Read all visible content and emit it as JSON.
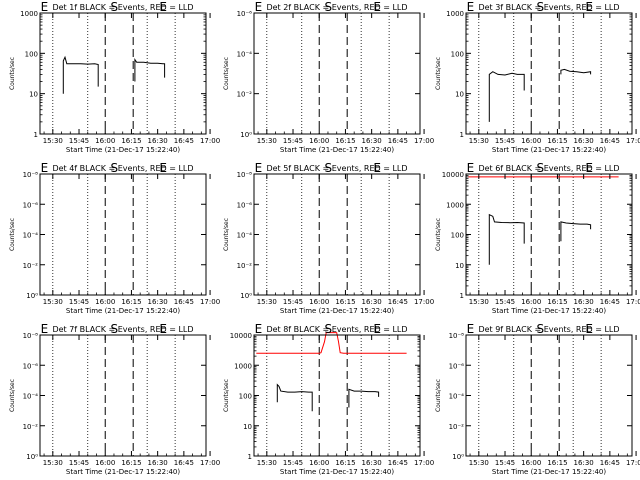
{
  "xlabel": "Start Time (21-Dec-17 15:22:40)",
  "ylabel": "Counts/sec",
  "x_tick_labels": [
    "15:30",
    "15:45",
    "16:00",
    "16:15",
    "16:30",
    "16:45",
    "17:00"
  ],
  "colors": {
    "events": "#000000",
    "lld": "#ff0000",
    "background": "#ffffff"
  },
  "chart_data": [
    {
      "type": "line",
      "title": "Det 1f BLACK = Events, RED = LLD",
      "y_scale": "log",
      "ylim": [
        1,
        1000
      ],
      "y_ticks": [
        "1",
        "10",
        "100",
        "1000"
      ],
      "x_tick_labels": [
        "15:30",
        "15:45",
        "16:00",
        "16:15",
        "16:30",
        "16:45",
        "17:00"
      ],
      "dotted_lines": [
        "15:30",
        "15:50",
        "16:24",
        "16:40"
      ],
      "dashed_lines": [
        "16:00",
        "16:16"
      ],
      "markers": [
        {
          "label": "E",
          "x": "15:23",
          "y": 1000
        },
        {
          "label": "S",
          "x": "16:03",
          "y": 1000
        },
        {
          "label": "E",
          "x": "16:31",
          "y": 1000
        }
      ],
      "series": [
        {
          "color": "#000000",
          "points": [
            [
              "15:36",
              10
            ],
            [
              "15:36",
              65
            ],
            [
              "15:37",
              80
            ],
            [
              "15:38",
              55
            ],
            [
              "15:42",
              55
            ],
            [
              "15:46",
              55
            ],
            [
              "15:50",
              54
            ],
            [
              "15:54",
              55
            ],
            [
              "15:56",
              53
            ],
            [
              "15:56",
              15
            ]
          ]
        },
        {
          "color": "#000000",
          "points": [
            [
              "16:17",
              20
            ],
            [
              "16:17",
              70
            ],
            [
              "16:18",
              60
            ],
            [
              "16:22",
              60
            ],
            [
              "16:26",
              57
            ],
            [
              "16:30",
              57
            ],
            [
              "16:33",
              55
            ],
            [
              "16:34",
              55
            ],
            [
              "16:34",
              25
            ]
          ]
        }
      ]
    },
    {
      "type": "line",
      "title": "Det 2f BLACK = Events, RED = LLD",
      "y_scale": "log",
      "ylim": [
        1,
        1e-06
      ],
      "y_ticks": [
        "10⁰",
        "10⁻²",
        "10⁻⁴",
        "10⁻⁶"
      ],
      "x_tick_labels": [
        "15:30",
        "15:45",
        "16:00",
        "16:15",
        "16:30",
        "16:45",
        "17:00"
      ],
      "dotted_lines": [
        "15:30",
        "15:50",
        "16:24",
        "16:40"
      ],
      "dashed_lines": [
        "16:00",
        "16:16"
      ],
      "markers": [
        {
          "label": "E",
          "x": "15:23",
          "y": 1
        },
        {
          "label": "S",
          "x": "16:03",
          "y": 1
        },
        {
          "label": "E",
          "x": "16:31",
          "y": 1
        }
      ],
      "series": []
    },
    {
      "type": "line",
      "title": "Det 3f BLACK = Events, RED = LLD",
      "y_scale": "log",
      "ylim": [
        1,
        1000
      ],
      "y_ticks": [
        "1",
        "10",
        "100",
        "1000"
      ],
      "x_tick_labels": [
        "15:30",
        "15:45",
        "16:00",
        "16:15",
        "16:30",
        "16:45",
        "17:00"
      ],
      "dotted_lines": [
        "15:30",
        "15:50",
        "16:24",
        "16:40"
      ],
      "dashed_lines": [
        "16:00",
        "16:16"
      ],
      "markers": [
        {
          "label": "E",
          "x": "15:23",
          "y": 1000
        },
        {
          "label": "S",
          "x": "16:03",
          "y": 1000
        },
        {
          "label": "E",
          "x": "16:31",
          "y": 1000
        }
      ],
      "series": [
        {
          "color": "#000000",
          "points": [
            [
              "15:36",
              2
            ],
            [
              "15:36",
              30
            ],
            [
              "15:38",
              35
            ],
            [
              "15:41",
              30
            ],
            [
              "15:45",
              29
            ],
            [
              "15:49",
              32
            ],
            [
              "15:52",
              30
            ],
            [
              "15:56",
              30
            ],
            [
              "15:56",
              12
            ]
          ]
        },
        {
          "color": "#000000",
          "points": [
            [
              "16:17",
              30
            ],
            [
              "16:17",
              38
            ],
            [
              "16:19",
              40
            ],
            [
              "16:22",
              36
            ],
            [
              "16:26",
              35
            ],
            [
              "16:30",
              33
            ],
            [
              "16:34",
              35
            ],
            [
              "16:34",
              30
            ]
          ]
        }
      ]
    },
    {
      "type": "line",
      "title": "Det 4f BLACK = Events, RED = LLD",
      "y_scale": "log",
      "ylim": [
        1,
        1e-08
      ],
      "y_ticks": [
        "10⁰",
        "10⁻²",
        "10⁻⁴",
        "10⁻⁶",
        "10⁻⁸"
      ],
      "x_tick_labels": [
        "15:30",
        "15:45",
        "16:00",
        "16:15",
        "16:30",
        "16:45",
        "17:00"
      ],
      "dotted_lines": [
        "15:30",
        "15:50",
        "16:24",
        "16:40"
      ],
      "dashed_lines": [
        "16:00",
        "16:16"
      ],
      "markers": [
        {
          "label": "E",
          "x": "15:23",
          "y": 1
        },
        {
          "label": "S",
          "x": "16:03",
          "y": 1
        },
        {
          "label": "E",
          "x": "16:31",
          "y": 1
        }
      ],
      "series": []
    },
    {
      "type": "line",
      "title": "Det 5f BLACK = Events, RED = LLD",
      "y_scale": "log",
      "ylim": [
        1,
        1e-08
      ],
      "y_ticks": [
        "10⁰",
        "10⁻²",
        "10⁻⁴",
        "10⁻⁶",
        "10⁻⁸"
      ],
      "x_tick_labels": [
        "15:30",
        "15:45",
        "16:00",
        "16:15",
        "16:30",
        "16:45",
        "17:00"
      ],
      "dotted_lines": [
        "15:30",
        "15:50",
        "16:24",
        "16:40"
      ],
      "dashed_lines": [
        "16:00",
        "16:16"
      ],
      "markers": [
        {
          "label": "E",
          "x": "15:23",
          "y": 1
        },
        {
          "label": "S",
          "x": "16:03",
          "y": 1
        },
        {
          "label": "E",
          "x": "16:31",
          "y": 1
        }
      ],
      "series": []
    },
    {
      "type": "line",
      "title": "Det 6f BLACK = Events, RED = LLD",
      "y_scale": "log",
      "ylim": [
        1,
        10000
      ],
      "y_ticks": [
        "1",
        "10",
        "100",
        "1000",
        "10000"
      ],
      "x_tick_labels": [
        "15:30",
        "15:45",
        "16:00",
        "16:15",
        "16:30",
        "16:45",
        "17:00"
      ],
      "dotted_lines": [
        "15:30",
        "15:50",
        "16:24",
        "16:40"
      ],
      "dashed_lines": [
        "16:00",
        "16:16"
      ],
      "markers": [
        {
          "label": "E",
          "x": "15:23",
          "y": 10000
        },
        {
          "label": "S",
          "x": "16:03",
          "y": 10000
        },
        {
          "label": "E",
          "x": "16:31",
          "y": 10000
        }
      ],
      "series": [
        {
          "color": "#ff0000",
          "points": [
            [
              "15:24",
              8000
            ],
            [
              "15:40",
              8000
            ],
            [
              "15:56",
              8000
            ],
            [
              "16:00",
              8000
            ],
            [
              "16:05",
              8000
            ],
            [
              "16:10",
              8000
            ],
            [
              "16:16",
              8000
            ],
            [
              "16:24",
              8000
            ],
            [
              "16:34",
              8000
            ],
            [
              "16:40",
              8000
            ],
            [
              "16:50",
              8000
            ]
          ]
        },
        {
          "color": "#000000",
          "points": [
            [
              "15:36",
              10
            ],
            [
              "15:36",
              450
            ],
            [
              "15:38",
              400
            ],
            [
              "15:39",
              260
            ],
            [
              "15:43",
              250
            ],
            [
              "15:48",
              245
            ],
            [
              "15:52",
              250
            ],
            [
              "15:56",
              240
            ],
            [
              "15:56",
              50
            ]
          ]
        },
        {
          "color": "#000000",
          "points": [
            [
              "16:17",
              60
            ],
            [
              "16:17",
              260
            ],
            [
              "16:20",
              240
            ],
            [
              "16:24",
              230
            ],
            [
              "16:28",
              220
            ],
            [
              "16:32",
              220
            ],
            [
              "16:34",
              210
            ],
            [
              "16:34",
              150
            ]
          ]
        }
      ]
    },
    {
      "type": "line",
      "title": "Det 7f BLACK = Events, RED = LLD",
      "y_scale": "log",
      "ylim": [
        1,
        1e-08
      ],
      "y_ticks": [
        "10⁰",
        "10⁻²",
        "10⁻⁴",
        "10⁻⁶",
        "10⁻⁸"
      ],
      "x_tick_labels": [
        "15:30",
        "15:45",
        "16:00",
        "16:15",
        "16:30",
        "16:45",
        "17:00"
      ],
      "dotted_lines": [
        "15:30",
        "15:50",
        "16:24",
        "16:40"
      ],
      "dashed_lines": [
        "16:00",
        "16:16"
      ],
      "markers": [
        {
          "label": "E",
          "x": "15:23",
          "y": 1
        },
        {
          "label": "S",
          "x": "16:03",
          "y": 1
        },
        {
          "label": "E",
          "x": "16:31",
          "y": 1
        }
      ],
      "series": []
    },
    {
      "type": "line",
      "title": "Det 8f BLACK = Events, RED = LLD",
      "y_scale": "log",
      "ylim": [
        1,
        10000
      ],
      "y_ticks": [
        "1",
        "10",
        "100",
        "1000",
        "10000"
      ],
      "x_tick_labels": [
        "15:30",
        "15:45",
        "16:00",
        "16:15",
        "16:30",
        "16:45",
        "17:00"
      ],
      "dotted_lines": [
        "15:30",
        "15:50",
        "16:24",
        "16:40"
      ],
      "dashed_lines": [
        "16:00",
        "16:16"
      ],
      "markers": [
        {
          "label": "E",
          "x": "15:23",
          "y": 10000
        },
        {
          "label": "S",
          "x": "16:03",
          "y": 10000
        },
        {
          "label": "E",
          "x": "16:31",
          "y": 10000
        }
      ],
      "series": [
        {
          "color": "#ff0000",
          "points": [
            [
              "15:24",
              2500
            ],
            [
              "15:40",
              2500
            ],
            [
              "15:56",
              2500
            ],
            [
              "16:00",
              2500
            ],
            [
              "16:01",
              2600
            ],
            [
              "16:03",
              6000
            ],
            [
              "16:04",
              12000
            ],
            [
              "16:08",
              12000
            ],
            [
              "16:10",
              12000
            ],
            [
              "16:11",
              6000
            ],
            [
              "16:12",
              2600
            ],
            [
              "16:14",
              2500
            ],
            [
              "16:30",
              2500
            ],
            [
              "16:50",
              2500
            ]
          ]
        },
        {
          "color": "#000000",
          "points": [
            [
              "15:36",
              60
            ],
            [
              "15:36",
              230
            ],
            [
              "15:37",
              200
            ],
            [
              "15:38",
              140
            ],
            [
              "15:42",
              130
            ],
            [
              "15:46",
              130
            ],
            [
              "15:50",
              135
            ],
            [
              "15:54",
              130
            ],
            [
              "15:56",
              130
            ],
            [
              "15:56",
              30
            ]
          ]
        },
        {
          "color": "#000000",
          "points": [
            [
              "16:17",
              40
            ],
            [
              "16:17",
              160
            ],
            [
              "16:20",
              140
            ],
            [
              "16:24",
              140
            ],
            [
              "16:28",
              135
            ],
            [
              "16:32",
              135
            ],
            [
              "16:34",
              130
            ],
            [
              "16:34",
              90
            ]
          ]
        }
      ]
    },
    {
      "type": "line",
      "title": "Det 9f BLACK = Events, RED = LLD",
      "y_scale": "log",
      "ylim": [
        1,
        1e-08
      ],
      "y_ticks": [
        "10⁰",
        "10⁻²",
        "10⁻⁴",
        "10⁻⁶",
        "10⁻⁸"
      ],
      "x_tick_labels": [
        "15:30",
        "15:45",
        "16:00",
        "16:15",
        "16:30",
        "16:45",
        "17:00"
      ],
      "dotted_lines": [
        "15:30",
        "15:50",
        "16:24",
        "16:40"
      ],
      "dashed_lines": [
        "16:00",
        "16:16"
      ],
      "markers": [
        {
          "label": "E",
          "x": "15:23",
          "y": 1
        },
        {
          "label": "S",
          "x": "16:03",
          "y": 1
        },
        {
          "label": "E",
          "x": "16:31",
          "y": 1
        }
      ],
      "series": []
    }
  ]
}
